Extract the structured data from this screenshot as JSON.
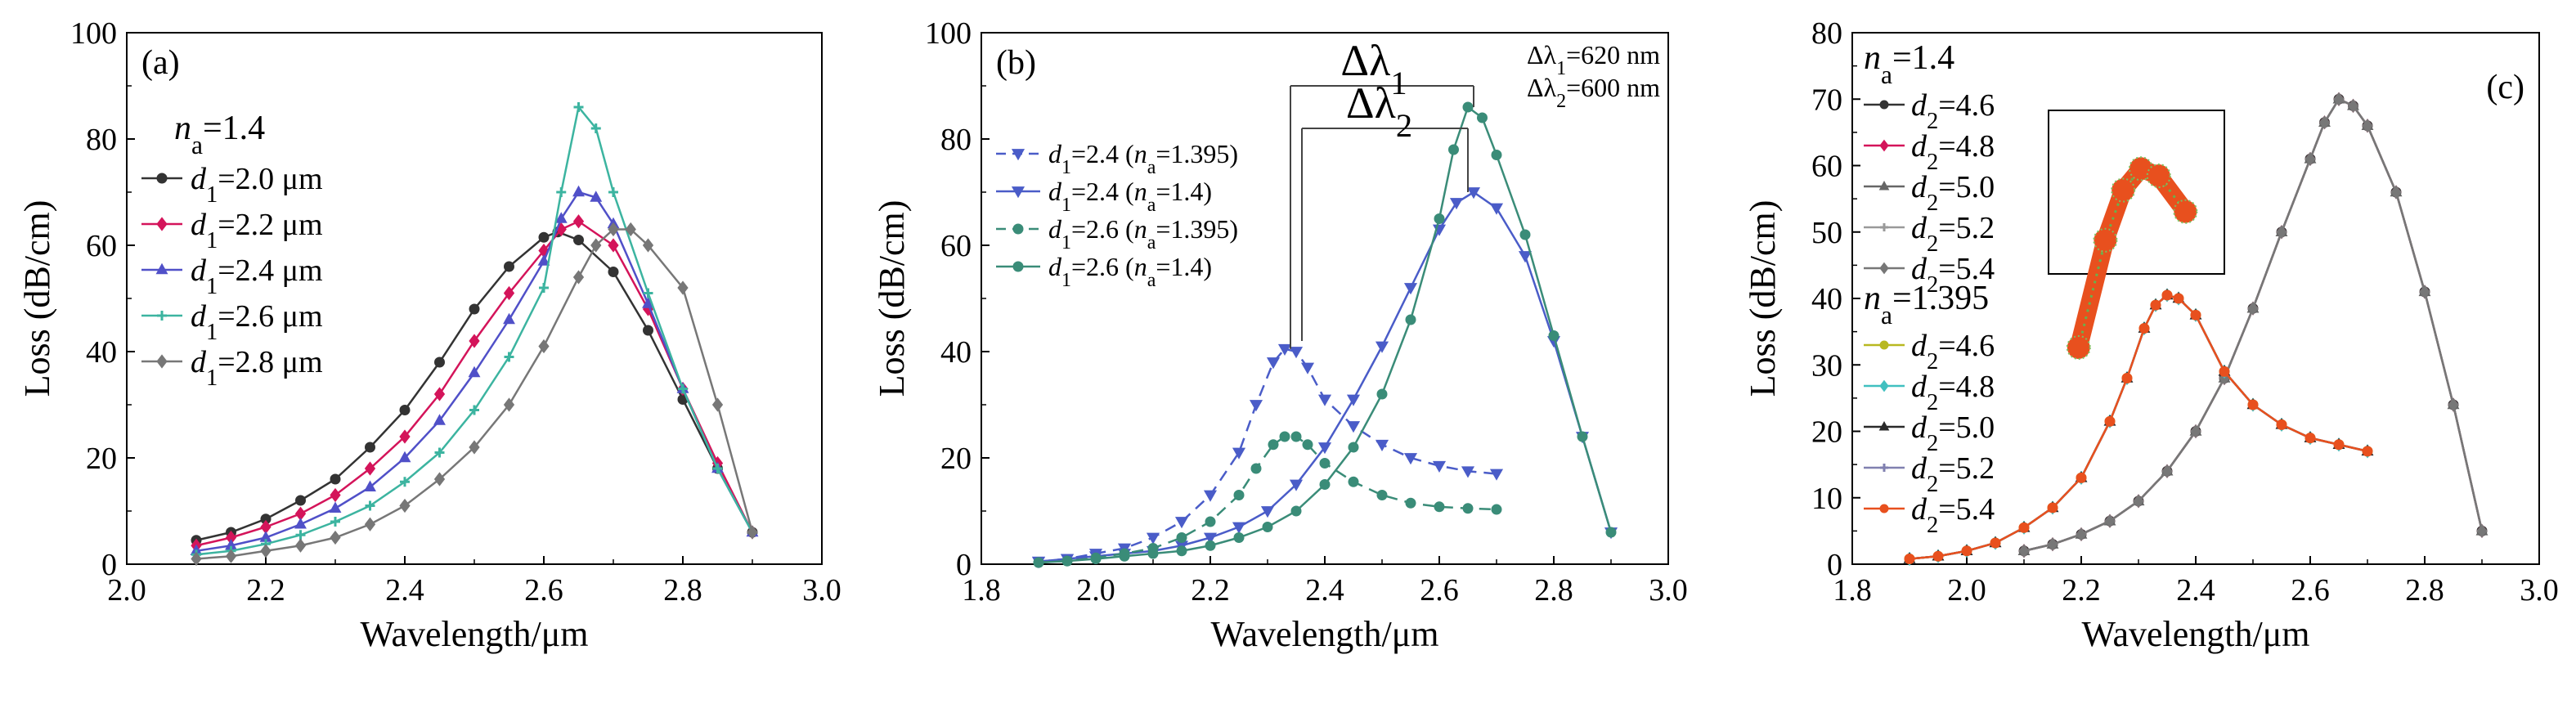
{
  "chart_data": [
    {
      "type": "line",
      "panel_label": "(a)",
      "xlabel": "Wavelength/μm",
      "ylabel": "Loss (dB/cm)",
      "xlim": [
        2.0,
        3.0
      ],
      "ylim": [
        0,
        100
      ],
      "xticks": [
        2.0,
        2.2,
        2.4,
        2.6,
        2.8,
        3.0
      ],
      "xtick_labels": [
        "2.0",
        "2.2",
        "2.4",
        "2.6",
        "2.8",
        "3.0"
      ],
      "yticks": [
        0,
        20,
        40,
        60,
        80,
        100
      ],
      "ytick_labels": [
        "0",
        "20",
        "40",
        "60",
        "80",
        "100"
      ],
      "grid": false,
      "legend_placement": "top-left",
      "legend_header": "n_a=1.4",
      "colors": [
        "#333333",
        "#d4145a",
        "#5050c8",
        "#3cb4a0",
        "#777777"
      ],
      "series": [
        {
          "name": "d1=2.0 μm",
          "color": "#333333",
          "marker": "circle",
          "x": [
            2.1,
            2.15,
            2.2,
            2.25,
            2.3,
            2.35,
            2.4,
            2.45,
            2.5,
            2.55,
            2.6,
            2.62,
            2.65,
            2.7,
            2.75,
            2.8,
            2.85,
            2.9
          ],
          "y": [
            4.5,
            6,
            8.5,
            12,
            16,
            22,
            29,
            38,
            48,
            56,
            61.5,
            62.5,
            61,
            55,
            44,
            31,
            18,
            6
          ]
        },
        {
          "name": "d1=2.2 μm",
          "color": "#d4145a",
          "marker": "diamond",
          "x": [
            2.1,
            2.15,
            2.2,
            2.25,
            2.3,
            2.35,
            2.4,
            2.45,
            2.5,
            2.55,
            2.6,
            2.625,
            2.65,
            2.7,
            2.75,
            2.8,
            2.85,
            2.9
          ],
          "y": [
            3.5,
            5,
            7,
            9.5,
            13,
            18,
            24,
            32,
            42,
            51,
            59,
            63,
            64.5,
            60,
            48,
            33,
            19,
            6
          ]
        },
        {
          "name": "d1=2.4 μm",
          "color": "#5050c8",
          "marker": "triangle",
          "x": [
            2.1,
            2.15,
            2.2,
            2.25,
            2.3,
            2.35,
            2.4,
            2.45,
            2.5,
            2.55,
            2.6,
            2.625,
            2.65,
            2.675,
            2.7,
            2.75,
            2.8,
            2.85,
            2.9
          ],
          "y": [
            2.5,
            3.5,
            5,
            7.5,
            10.5,
            14.5,
            20,
            27,
            36,
            46,
            57,
            65,
            70,
            69,
            64,
            49,
            33,
            18,
            6
          ]
        },
        {
          "name": "d1=2.6 μm",
          "color": "#3cb4a0",
          "marker": "plus",
          "x": [
            2.1,
            2.15,
            2.2,
            2.25,
            2.3,
            2.35,
            2.4,
            2.45,
            2.5,
            2.55,
            2.6,
            2.625,
            2.65,
            2.675,
            2.7,
            2.75,
            2.8,
            2.85,
            2.9
          ],
          "y": [
            1.8,
            2.5,
            3.8,
            5.5,
            8,
            11,
            15.5,
            21,
            29,
            39,
            52,
            70,
            86,
            82,
            70,
            51,
            33,
            18,
            6
          ]
        },
        {
          "name": "d1=2.8 μm",
          "color": "#777777",
          "marker": "diamond",
          "x": [
            2.1,
            2.15,
            2.2,
            2.25,
            2.3,
            2.35,
            2.4,
            2.45,
            2.5,
            2.55,
            2.6,
            2.65,
            2.675,
            2.7,
            2.725,
            2.75,
            2.8,
            2.85,
            2.9
          ],
          "y": [
            1,
            1.5,
            2.5,
            3.5,
            5,
            7.5,
            11,
            16,
            22,
            30,
            41,
            54,
            60,
            63,
            63,
            60,
            52,
            30,
            6
          ]
        }
      ]
    },
    {
      "type": "line",
      "panel_label": "(b)",
      "xlabel": "Wavelength/μm",
      "ylabel": "Loss (dB/cm)",
      "xlim": [
        1.8,
        3.0
      ],
      "ylim": [
        0,
        100
      ],
      "xticks": [
        1.8,
        2.0,
        2.2,
        2.4,
        2.6,
        2.8,
        3.0
      ],
      "xtick_labels": [
        "1.8",
        "2.0",
        "2.2",
        "2.4",
        "2.6",
        "2.8",
        "3.0"
      ],
      "yticks": [
        0,
        20,
        40,
        60,
        80,
        100
      ],
      "ytick_labels": [
        "0",
        "20",
        "40",
        "60",
        "80",
        "100"
      ],
      "grid": false,
      "legend_placement": "top-left",
      "colors": [
        "#4a5cc8",
        "#3a8c78"
      ],
      "annotations": {
        "dl1_label": "Δλ1",
        "dl2_label": "Δλ2",
        "dl1_value": "Δλ1=620 nm",
        "dl2_value": "Δλ2=600 nm",
        "dl1_range_um": [
          2.34,
          2.66
        ],
        "dl2_range_um": [
          2.34,
          2.65
        ]
      },
      "series": [
        {
          "name": "d1=2.4 (na=1.395)",
          "color": "#4a5cc8",
          "marker": "triangle-down",
          "dashed": true,
          "x": [
            1.9,
            1.95,
            2.0,
            2.05,
            2.1,
            2.15,
            2.2,
            2.25,
            2.28,
            2.31,
            2.33,
            2.35,
            2.37,
            2.4,
            2.45,
            2.5,
            2.55,
            2.6,
            2.65,
            2.7
          ],
          "y": [
            0.5,
            1,
            2,
            3,
            5,
            8,
            13,
            21,
            30,
            38,
            40.5,
            40,
            37,
            31,
            26,
            22.5,
            20,
            18.5,
            17.5,
            17
          ]
        },
        {
          "name": "d1=2.4 (na=1.4)",
          "color": "#4a5cc8",
          "marker": "triangle-down",
          "dashed": false,
          "x": [
            1.9,
            1.95,
            2.0,
            2.05,
            2.1,
            2.15,
            2.2,
            2.25,
            2.3,
            2.35,
            2.4,
            2.45,
            2.5,
            2.55,
            2.6,
            2.63,
            2.66,
            2.7,
            2.75,
            2.8,
            2.85,
            2.9
          ],
          "y": [
            0.5,
            1,
            1.5,
            2,
            2.5,
            3.5,
            5,
            7,
            10,
            15,
            22,
            31,
            41,
            52,
            63,
            68,
            70,
            67,
            58,
            42,
            24,
            6
          ]
        },
        {
          "name": "d1=2.6 (na=1.395)",
          "color": "#3a8c78",
          "marker": "circle",
          "dashed": true,
          "x": [
            1.9,
            1.95,
            2.0,
            2.05,
            2.1,
            2.15,
            2.2,
            2.25,
            2.28,
            2.31,
            2.33,
            2.35,
            2.37,
            2.4,
            2.45,
            2.5,
            2.55,
            2.6,
            2.65,
            2.7
          ],
          "y": [
            0.3,
            0.6,
            1.2,
            2,
            3,
            5,
            8,
            13,
            18,
            22.5,
            24,
            24,
            22.5,
            19,
            15.5,
            13,
            11.5,
            10.8,
            10.5,
            10.3
          ]
        },
        {
          "name": "d1=2.6 (na=1.4)",
          "color": "#3a8c78",
          "marker": "circle",
          "dashed": false,
          "x": [
            1.9,
            1.95,
            2.0,
            2.05,
            2.1,
            2.15,
            2.2,
            2.25,
            2.3,
            2.35,
            2.4,
            2.45,
            2.5,
            2.55,
            2.6,
            2.625,
            2.65,
            2.675,
            2.7,
            2.75,
            2.8,
            2.85,
            2.9
          ],
          "y": [
            0.3,
            0.6,
            1,
            1.5,
            2,
            2.5,
            3.5,
            5,
            7,
            10,
            15,
            22,
            32,
            46,
            65,
            78,
            86,
            84,
            77,
            62,
            43,
            24,
            6
          ]
        }
      ]
    },
    {
      "type": "line",
      "panel_label": "(c)",
      "xlabel": "Wavelength/μm",
      "ylabel": "Loss (dB/cm)",
      "xlim": [
        1.8,
        3.0
      ],
      "ylim": [
        0,
        80
      ],
      "xticks": [
        1.8,
        2.0,
        2.2,
        2.4,
        2.6,
        2.8,
        3.0
      ],
      "xtick_labels": [
        "1.8",
        "2.0",
        "2.2",
        "2.4",
        "2.6",
        "2.8",
        "3.0"
      ],
      "yticks": [
        0,
        10,
        20,
        30,
        40,
        50,
        60,
        70,
        80
      ],
      "ytick_labels": [
        "0",
        "10",
        "20",
        "30",
        "40",
        "50",
        "60",
        "70",
        "80"
      ],
      "grid": false,
      "legend_placement": "top-left",
      "legend_header_1": "n_a=1.4",
      "legend_header_2": "n_a=1.395",
      "inset": "magnified peak of the n_a=1.395 curves",
      "colors": [
        "#333333",
        "#d4145a",
        "#666666",
        "#999999",
        "#777777",
        "#b8b820",
        "#40c0c0",
        "#2a2a2a",
        "#8080b0",
        "#e8501e"
      ],
      "series": [
        {
          "name": "d2=4.6",
          "group": "na=1.4",
          "color": "#333333",
          "marker": "circle",
          "x": [
            2.1,
            2.15,
            2.2,
            2.25,
            2.3,
            2.35,
            2.4,
            2.45,
            2.5,
            2.55,
            2.6,
            2.625,
            2.65,
            2.675,
            2.7,
            2.75,
            2.8,
            2.85,
            2.9
          ],
          "y": [
            2,
            3,
            4.5,
            6.5,
            9.5,
            14,
            20,
            28,
            38.5,
            50,
            61,
            66.5,
            70,
            69,
            66,
            56,
            41,
            24,
            5
          ]
        },
        {
          "name": "d2=4.8",
          "group": "na=1.4",
          "color": "#d4145a",
          "marker": "diamond",
          "x": [
            2.1,
            2.15,
            2.2,
            2.25,
            2.3,
            2.35,
            2.4,
            2.45,
            2.5,
            2.55,
            2.6,
            2.625,
            2.65,
            2.675,
            2.7,
            2.75,
            2.8,
            2.85,
            2.9
          ],
          "y": [
            2,
            3,
            4.5,
            6.5,
            9.5,
            14,
            20,
            28,
            38.5,
            50,
            61,
            66.5,
            70,
            69,
            66,
            56,
            41,
            24,
            5
          ]
        },
        {
          "name": "d2=5.0",
          "group": "na=1.4",
          "color": "#666666",
          "marker": "triangle",
          "x": [
            2.1,
            2.15,
            2.2,
            2.25,
            2.3,
            2.35,
            2.4,
            2.45,
            2.5,
            2.55,
            2.6,
            2.625,
            2.65,
            2.675,
            2.7,
            2.75,
            2.8,
            2.85,
            2.9
          ],
          "y": [
            2,
            3,
            4.5,
            6.5,
            9.5,
            14,
            20,
            28,
            38.5,
            50,
            61,
            66.5,
            70,
            69,
            66,
            56,
            41,
            24,
            5
          ]
        },
        {
          "name": "d2=5.2",
          "group": "na=1.4",
          "color": "#999999",
          "marker": "plus",
          "x": [
            2.1,
            2.15,
            2.2,
            2.25,
            2.3,
            2.35,
            2.4,
            2.45,
            2.5,
            2.55,
            2.6,
            2.625,
            2.65,
            2.675,
            2.7,
            2.75,
            2.8,
            2.85,
            2.9
          ],
          "y": [
            2,
            3,
            4.5,
            6.5,
            9.5,
            14,
            20,
            28,
            38.5,
            50,
            61,
            66.5,
            70,
            69,
            66,
            56,
            41,
            24,
            5
          ]
        },
        {
          "name": "d2=5.4",
          "group": "na=1.4",
          "color": "#777777",
          "marker": "diamond",
          "x": [
            2.1,
            2.15,
            2.2,
            2.25,
            2.3,
            2.35,
            2.4,
            2.45,
            2.5,
            2.55,
            2.6,
            2.625,
            2.65,
            2.675,
            2.7,
            2.75,
            2.8,
            2.85,
            2.9
          ],
          "y": [
            2,
            3,
            4.5,
            6.5,
            9.5,
            14,
            20,
            28,
            38.5,
            50,
            61,
            66.5,
            70,
            69,
            66,
            56,
            41,
            24,
            5
          ]
        },
        {
          "name": "d2=4.6",
          "group": "na=1.395",
          "color": "#b8b820",
          "marker": "circle",
          "x": [
            1.9,
            1.95,
            2.0,
            2.05,
            2.1,
            2.15,
            2.2,
            2.25,
            2.28,
            2.31,
            2.33,
            2.35,
            2.37,
            2.4,
            2.45,
            2.5,
            2.55,
            2.6,
            2.65,
            2.7
          ],
          "y": [
            0.8,
            1.2,
            2,
            3.2,
            5.5,
            8.5,
            13,
            21.5,
            28,
            35.5,
            39,
            40.5,
            40,
            37.5,
            29,
            24,
            21,
            19,
            18,
            17
          ]
        },
        {
          "name": "d2=4.8",
          "group": "na=1.395",
          "color": "#40c0c0",
          "marker": "diamond",
          "x": [
            1.9,
            1.95,
            2.0,
            2.05,
            2.1,
            2.15,
            2.2,
            2.25,
            2.28,
            2.31,
            2.33,
            2.35,
            2.37,
            2.4,
            2.45,
            2.5,
            2.55,
            2.6,
            2.65,
            2.7
          ],
          "y": [
            0.8,
            1.2,
            2,
            3.2,
            5.5,
            8.5,
            13,
            21.5,
            28,
            35.5,
            39,
            40.5,
            40,
            37.5,
            29,
            24,
            21,
            19,
            18,
            17
          ]
        },
        {
          "name": "d2=5.0",
          "group": "na=1.395",
          "color": "#2a2a2a",
          "marker": "triangle",
          "x": [
            1.9,
            1.95,
            2.0,
            2.05,
            2.1,
            2.15,
            2.2,
            2.25,
            2.28,
            2.31,
            2.33,
            2.35,
            2.37,
            2.4,
            2.45,
            2.5,
            2.55,
            2.6,
            2.65,
            2.7
          ],
          "y": [
            0.8,
            1.2,
            2,
            3.2,
            5.5,
            8.5,
            13,
            21.5,
            28,
            35.5,
            39,
            40.5,
            40,
            37.5,
            29,
            24,
            21,
            19,
            18,
            17
          ]
        },
        {
          "name": "d2=5.2",
          "group": "na=1.395",
          "color": "#8080b0",
          "marker": "plus",
          "x": [
            1.9,
            1.95,
            2.0,
            2.05,
            2.1,
            2.15,
            2.2,
            2.25,
            2.28,
            2.31,
            2.33,
            2.35,
            2.37,
            2.4,
            2.45,
            2.5,
            2.55,
            2.6,
            2.65,
            2.7
          ],
          "y": [
            0.8,
            1.2,
            2,
            3.2,
            5.5,
            8.5,
            13,
            21.5,
            28,
            35.5,
            39,
            40.5,
            40,
            37.5,
            29,
            24,
            21,
            19,
            18,
            17
          ]
        },
        {
          "name": "d2=5.4",
          "group": "na=1.395",
          "color": "#e8501e",
          "marker": "circle",
          "x": [
            1.9,
            1.95,
            2.0,
            2.05,
            2.1,
            2.15,
            2.2,
            2.25,
            2.28,
            2.31,
            2.33,
            2.35,
            2.37,
            2.4,
            2.45,
            2.5,
            2.55,
            2.6,
            2.65,
            2.7
          ],
          "y": [
            0.8,
            1.2,
            2,
            3.2,
            5.5,
            8.5,
            13,
            21.5,
            28,
            35.5,
            39,
            40.5,
            40,
            37.5,
            29,
            24,
            21,
            19,
            18,
            17
          ]
        }
      ]
    }
  ]
}
